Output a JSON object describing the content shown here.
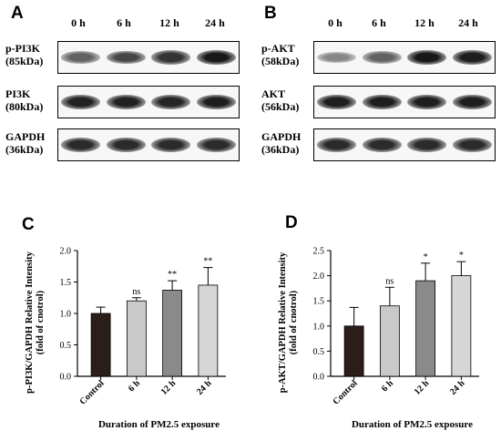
{
  "panelA": {
    "letter": "A",
    "lanes": [
      "0 h",
      "6 h",
      "12 h",
      "24 h"
    ],
    "rows": [
      {
        "name": "p-PI3K",
        "mw": "(85kDa)",
        "intensity": [
          0.55,
          0.7,
          0.8,
          0.95
        ]
      },
      {
        "name": "PI3K",
        "mw": "(80kDa)",
        "intensity": [
          0.9,
          0.9,
          0.88,
          0.92
        ]
      },
      {
        "name": "GAPDH",
        "mw": "(36kDa)",
        "intensity": [
          0.85,
          0.85,
          0.85,
          0.85
        ]
      }
    ]
  },
  "panelB": {
    "letter": "B",
    "lanes": [
      "0 h",
      "6 h",
      "12 h",
      "24 h"
    ],
    "rows": [
      {
        "name": "p-AKT",
        "mw": "(58kDa)",
        "intensity": [
          0.35,
          0.55,
          0.95,
          0.92
        ]
      },
      {
        "name": "AKT",
        "mw": "(56kDa)",
        "intensity": [
          0.92,
          0.92,
          0.92,
          0.92
        ]
      },
      {
        "name": "GAPDH",
        "mw": "(36kDa)",
        "intensity": [
          0.85,
          0.85,
          0.85,
          0.85
        ]
      }
    ]
  },
  "chart_data": [
    {
      "panel": "C",
      "type": "bar",
      "categories": [
        "Control",
        "6 h",
        "12 h",
        "24 h"
      ],
      "values": [
        1.0,
        1.2,
        1.37,
        1.45
      ],
      "errors": [
        0.1,
        0.05,
        0.15,
        0.28
      ],
      "significance": [
        "",
        "ns",
        "**",
        "**"
      ],
      "colors": [
        "#2b1d1a",
        "#c9c9c9",
        "#8a8a8a",
        "#d6d6d6"
      ],
      "ylabel_line1": "p-PI3K/GAPDH Relative Intensity",
      "ylabel_line2": "(fold of cnotrol)",
      "xlabel": "Duration of PM2.5 exposure",
      "yticks": [
        "0.0",
        "0.5",
        "1.0",
        "1.5",
        "2.0"
      ],
      "ylim": [
        0,
        2.0
      ]
    },
    {
      "panel": "D",
      "type": "bar",
      "categories": [
        "Control",
        "6 h",
        "12 h",
        "24 h"
      ],
      "values": [
        1.0,
        1.4,
        1.9,
        2.0
      ],
      "errors": [
        0.37,
        0.37,
        0.35,
        0.28
      ],
      "significance": [
        "",
        "ns",
        "*",
        "*"
      ],
      "colors": [
        "#2b1d1a",
        "#c9c9c9",
        "#8a8a8a",
        "#d6d6d6"
      ],
      "ylabel_line1": "p-AKT/GAPDH Relative Intensity",
      "ylabel_line2": "(fold of cnotrol)",
      "xlabel": "Duration of PM2.5 exposure",
      "yticks": [
        "0.0",
        "0.5",
        "1.0",
        "1.5",
        "2.0",
        "2.5"
      ],
      "ylim": [
        0,
        2.5
      ]
    }
  ]
}
